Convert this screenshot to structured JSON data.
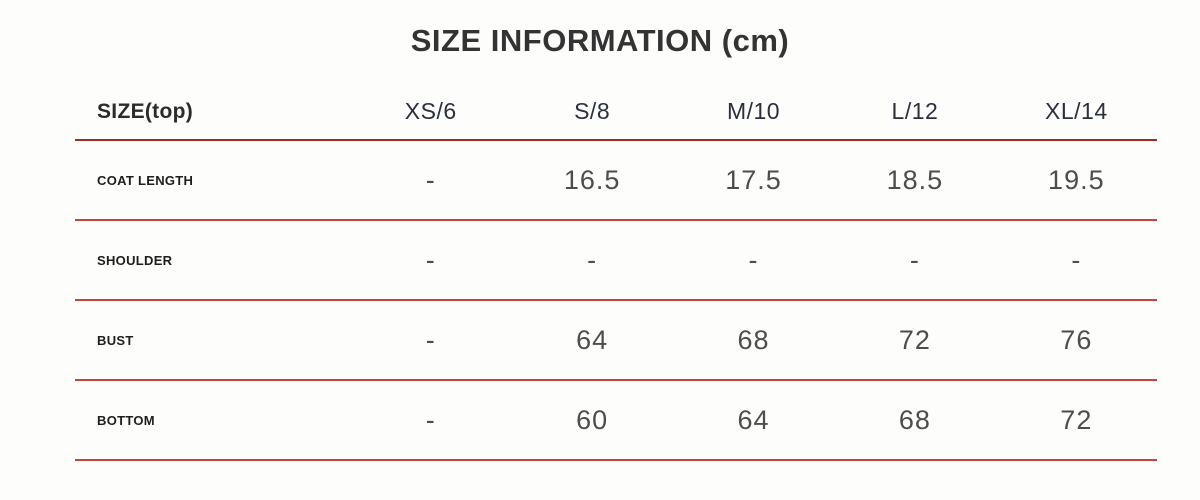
{
  "title": "SIZE INFORMATION (cm)",
  "units": "cm",
  "colors": {
    "header_rule": "#9d2b28",
    "row_rule": "#c6443c",
    "title_text": "#333333",
    "header_text": "#2b303a",
    "label_text": "#1e1e1e",
    "value_text": "#4d4d4d"
  },
  "table": {
    "header": {
      "label": "SIZE(top)",
      "sizes": [
        "XS/6",
        "S/8",
        "M/10",
        "L/12",
        "XL/14"
      ]
    },
    "rows": [
      {
        "label": "COAT LENGTH",
        "values": [
          "-",
          "16.5",
          "17.5",
          "18.5",
          "19.5"
        ]
      },
      {
        "label": "SHOULDER",
        "values": [
          "-",
          "-",
          "-",
          "-",
          "-"
        ]
      },
      {
        "label": "BUST",
        "values": [
          "-",
          "64",
          "68",
          "72",
          "76"
        ]
      },
      {
        "label": "BOTTOM",
        "values": [
          "-",
          "60",
          "64",
          "68",
          "72"
        ]
      }
    ]
  }
}
